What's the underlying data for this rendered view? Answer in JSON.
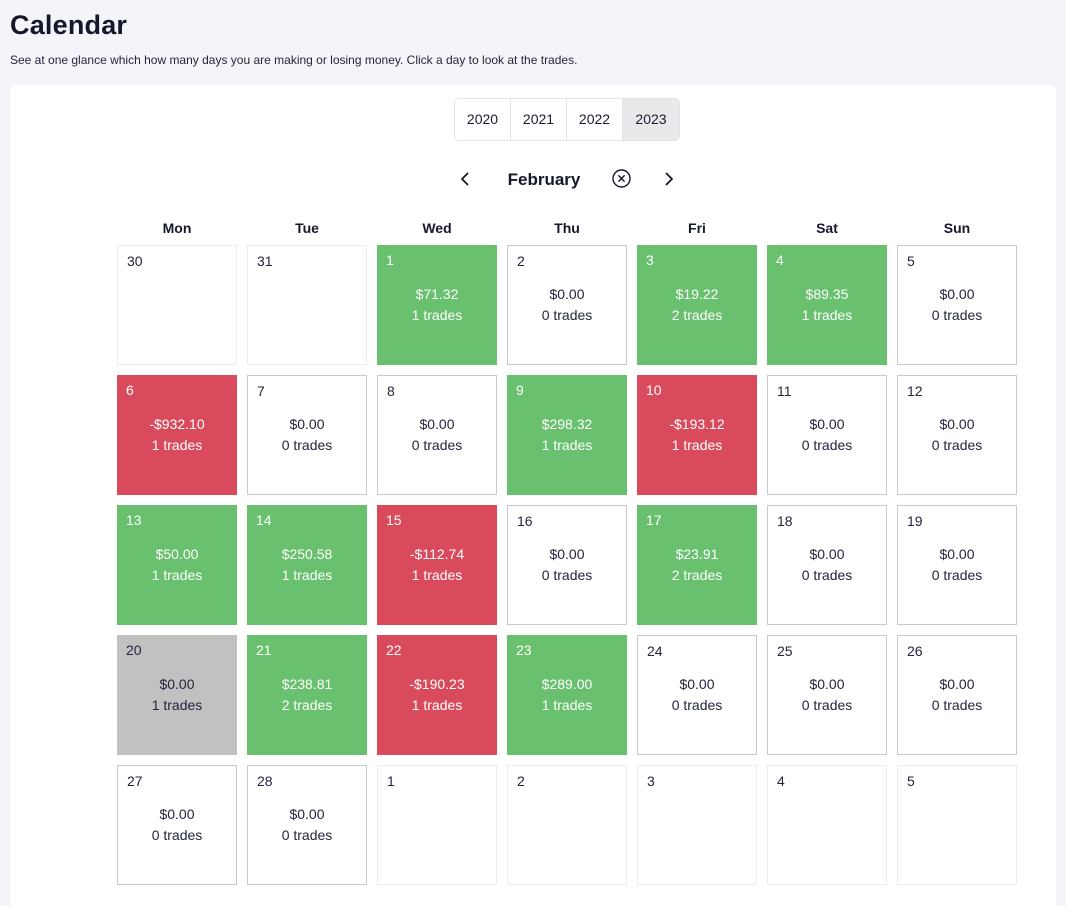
{
  "header": {
    "title": "Calendar",
    "subtitle": "See at one glance which how many days you are making or losing money. Click a day to look at the trades."
  },
  "year_tabs": {
    "options": [
      "2020",
      "2021",
      "2022",
      "2023"
    ],
    "selected": "2023"
  },
  "month_nav": {
    "month": "February",
    "prev_icon": "chevron-left",
    "reset_icon": "circle-x",
    "next_icon": "chevron-right"
  },
  "weekdays": [
    "Mon",
    "Tue",
    "Wed",
    "Thu",
    "Fri",
    "Sat",
    "Sun"
  ],
  "colors": {
    "profit": "#69c06e",
    "loss": "#d94b5c",
    "neutral": "#c1c1c1"
  },
  "calendar": {
    "cells": [
      {
        "day": "30",
        "amount": "",
        "trades": "",
        "state": "other"
      },
      {
        "day": "31",
        "amount": "",
        "trades": "",
        "state": "other"
      },
      {
        "day": "1",
        "amount": "$71.32",
        "trades": "1 trades",
        "state": "profit"
      },
      {
        "day": "2",
        "amount": "$0.00",
        "trades": "0 trades",
        "state": "flat"
      },
      {
        "day": "3",
        "amount": "$19.22",
        "trades": "2 trades",
        "state": "profit"
      },
      {
        "day": "4",
        "amount": "$89.35",
        "trades": "1 trades",
        "state": "profit"
      },
      {
        "day": "5",
        "amount": "$0.00",
        "trades": "0 trades",
        "state": "flat"
      },
      {
        "day": "6",
        "amount": "-$932.10",
        "trades": "1 trades",
        "state": "loss"
      },
      {
        "day": "7",
        "amount": "$0.00",
        "trades": "0 trades",
        "state": "flat"
      },
      {
        "day": "8",
        "amount": "$0.00",
        "trades": "0 trades",
        "state": "flat"
      },
      {
        "day": "9",
        "amount": "$298.32",
        "trades": "1 trades",
        "state": "profit"
      },
      {
        "day": "10",
        "amount": "-$193.12",
        "trades": "1 trades",
        "state": "loss"
      },
      {
        "day": "11",
        "amount": "$0.00",
        "trades": "0 trades",
        "state": "flat"
      },
      {
        "day": "12",
        "amount": "$0.00",
        "trades": "0 trades",
        "state": "flat"
      },
      {
        "day": "13",
        "amount": "$50.00",
        "trades": "1 trades",
        "state": "profit"
      },
      {
        "day": "14",
        "amount": "$250.58",
        "trades": "1 trades",
        "state": "profit"
      },
      {
        "day": "15",
        "amount": "-$112.74",
        "trades": "1 trades",
        "state": "loss"
      },
      {
        "day": "16",
        "amount": "$0.00",
        "trades": "0 trades",
        "state": "flat"
      },
      {
        "day": "17",
        "amount": "$23.91",
        "trades": "2 trades",
        "state": "profit"
      },
      {
        "day": "18",
        "amount": "$0.00",
        "trades": "0 trades",
        "state": "flat"
      },
      {
        "day": "19",
        "amount": "$0.00",
        "trades": "0 trades",
        "state": "flat"
      },
      {
        "day": "20",
        "amount": "$0.00",
        "trades": "1 trades",
        "state": "neutral"
      },
      {
        "day": "21",
        "amount": "$238.81",
        "trades": "2 trades",
        "state": "profit"
      },
      {
        "day": "22",
        "amount": "-$190.23",
        "trades": "1 trades",
        "state": "loss"
      },
      {
        "day": "23",
        "amount": "$289.00",
        "trades": "1 trades",
        "state": "profit"
      },
      {
        "day": "24",
        "amount": "$0.00",
        "trades": "0 trades",
        "state": "flat"
      },
      {
        "day": "25",
        "amount": "$0.00",
        "trades": "0 trades",
        "state": "flat"
      },
      {
        "day": "26",
        "amount": "$0.00",
        "trades": "0 trades",
        "state": "flat"
      },
      {
        "day": "27",
        "amount": "$0.00",
        "trades": "0 trades",
        "state": "flat"
      },
      {
        "day": "28",
        "amount": "$0.00",
        "trades": "0 trades",
        "state": "flat"
      },
      {
        "day": "1",
        "amount": "",
        "trades": "",
        "state": "other"
      },
      {
        "day": "2",
        "amount": "",
        "trades": "",
        "state": "other"
      },
      {
        "day": "3",
        "amount": "",
        "trades": "",
        "state": "other"
      },
      {
        "day": "4",
        "amount": "",
        "trades": "",
        "state": "other"
      },
      {
        "day": "5",
        "amount": "",
        "trades": "",
        "state": "other"
      }
    ]
  }
}
